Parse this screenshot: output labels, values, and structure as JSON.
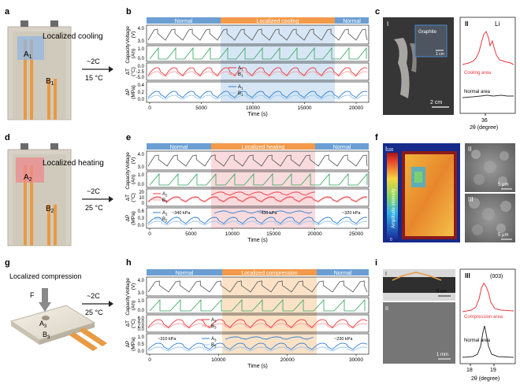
{
  "figure": {
    "panel_letters": {
      "a": "a",
      "b": "b",
      "c": "c",
      "d": "d",
      "e": "e",
      "f": "f",
      "g": "g",
      "h": "h",
      "i": "i"
    },
    "row1": {
      "cell_label": "Localized cooling",
      "point_A": "A",
      "point_A_sub": "1",
      "point_B": "B",
      "point_B_sub": "1",
      "condition_rate": "~2C",
      "condition_temp": "15 °C",
      "phase_labels": [
        "Normal",
        "Localized cooling",
        "Normal"
      ],
      "y_labels": [
        "Voltage (V)",
        "Capacity (Ah)",
        "ΔT (°C)",
        "ΔP (MPa)"
      ],
      "y_ticks": [
        [
          "4.0",
          "3.0"
        ],
        [
          "1.0",
          "0.0"
        ],
        [
          "0.0",
          "-2.5",
          "-5.0"
        ],
        [
          "0.4",
          "0.2",
          "0.0"
        ]
      ],
      "x_ticks": [
        "0",
        "5000",
        "10000",
        "15000",
        "20000"
      ],
      "x_label": "Time (s)",
      "legend": [
        [
          "A",
          "1"
        ],
        [
          "B",
          "1"
        ]
      ],
      "photo_labels": {
        "roman": "I",
        "inset": "Graphite",
        "scale": "2 cm",
        "inset_scale": "1 cm"
      },
      "xrd": {
        "roman": "II",
        "element": "Li",
        "cooling": "Cooling area",
        "normal": "Normal area",
        "tick": "36",
        "xlabel": "2θ (degree)"
      }
    },
    "row2": {
      "cell_label": "Localized heating",
      "point_A": "A",
      "point_A_sub": "2",
      "point_B": "B",
      "point_B_sub": "2",
      "condition_rate": "~2C",
      "condition_temp": "25 °C",
      "phase_labels": [
        "Normal",
        "Localized heating",
        "Normal"
      ],
      "y_labels": [
        "Voltage (V)",
        "Capacity (Ah)",
        "ΔT (°C)",
        "ΔP (MPa)"
      ],
      "y_ticks": [
        [
          "4.0",
          "3.0"
        ],
        [
          "1.0",
          "0.0"
        ],
        [
          "20",
          "10",
          "0"
        ],
        [
          "0.6",
          "0.3",
          "0.0"
        ]
      ],
      "x_ticks": [
        "0",
        "5000",
        "10000",
        "15000",
        "20000",
        "25000"
      ],
      "x_label": "Time (s)",
      "legend": [
        [
          "A",
          "2"
        ],
        [
          "B",
          "2"
        ]
      ],
      "annotations": [
        "~340 kPa",
        "~430 kPa",
        "~320 kPa"
      ],
      "ultrasound": {
        "roman": "I",
        "colorbar_label": "Amplitude intensity",
        "cbar_max": "100",
        "cbar_min": "0"
      },
      "sem": {
        "roman2": "II",
        "roman3": "III",
        "scale2": "5 μm",
        "scale3": "5 μm"
      }
    },
    "row3": {
      "cell_label": "Localized compression",
      "force": "F",
      "point_A": "A",
      "point_A_sub": "3",
      "point_B": "B",
      "point_B_sub": "3",
      "condition_rate": "~2C",
      "condition_temp": "25 °C",
      "phase_labels": [
        "Normal",
        "Localized compression",
        "Normal"
      ],
      "y_labels": [
        "Voltage (V)",
        "Capacity (Ah)",
        "ΔT (°C)",
        "ΔP (MPa)"
      ],
      "y_ticks": [
        [
          "4.0",
          "3.0"
        ],
        [
          "1.0",
          "0.0"
        ],
        [
          "6.0",
          "4.0",
          "2.0",
          "0.0"
        ],
        [
          "1.0",
          "0.5",
          "0.0"
        ]
      ],
      "x_ticks": [
        "0",
        "10000",
        "20000",
        "30000"
      ],
      "x_label": "Time (s)",
      "legend": [
        [
          "A",
          "3"
        ],
        [
          "B",
          "3"
        ]
      ],
      "annotations": [
        "~310 kPa",
        "~230 kPa"
      ],
      "photo_labels": {
        "roman1": "I",
        "scale1": "5 cm",
        "roman2": "II",
        "scale2": "1 mm"
      },
      "xrd": {
        "roman": "III",
        "peak": "(003)",
        "compression": "Compression area",
        "normal": "Normal area",
        "ticks": [
          "18",
          "19"
        ],
        "xlabel": "2θ (degree)"
      }
    },
    "colors": {
      "normal_band": "#6b9fd4",
      "cooling_band": "#f29a4a",
      "cooling_shade": "#c9ddf2",
      "heating_shade": "#f7cfd3",
      "compression_shade": "#f9d8b4",
      "voltage": "#555555",
      "capacity": "#2fa35a",
      "temp_A": "#e8393f",
      "temp_B": "#f3a4a4",
      "press_A": "#2f7fd0",
      "press_B": "#9cc6ec"
    }
  }
}
